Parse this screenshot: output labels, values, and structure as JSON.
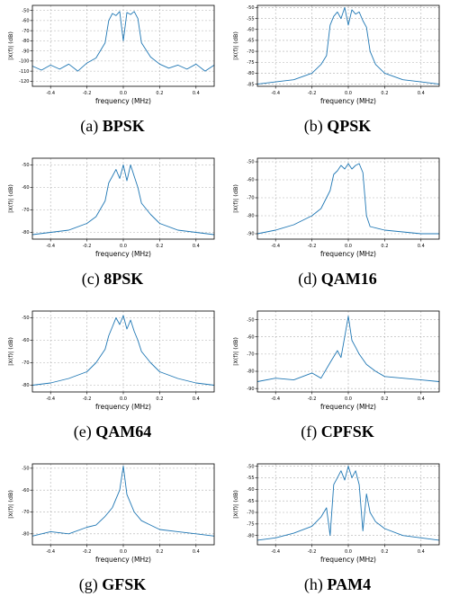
{
  "style": {
    "line_color": "#1f77b4",
    "grid_color": "#b0b0b0"
  },
  "chart_data": [
    {
      "type": "line",
      "caption_prefix": "(a) ",
      "caption_name": "BPSK",
      "xlabel": "frequency (MHz)",
      "ylabel": "|X(f)| (dB)",
      "xlim": [
        -0.5,
        0.5
      ],
      "ylim": [
        -125,
        -45
      ],
      "xticks": [
        "-0.4",
        "-0.2",
        "0.0",
        "0.2",
        "0.4"
      ],
      "yticks": [
        "-50",
        "-60",
        "-70",
        "-80",
        "-90",
        "-100",
        "-110",
        "-120"
      ],
      "x": [
        -0.5,
        -0.45,
        -0.4,
        -0.35,
        -0.3,
        -0.25,
        -0.2,
        -0.15,
        -0.1,
        -0.08,
        -0.06,
        -0.04,
        -0.02,
        0.0,
        0.02,
        0.04,
        0.06,
        0.08,
        0.1,
        0.15,
        0.2,
        0.25,
        0.3,
        0.35,
        0.4,
        0.45,
        0.5
      ],
      "values": [
        -105,
        -109,
        -104,
        -108,
        -103,
        -110,
        -102,
        -97,
        -82,
        -60,
        -53,
        -55,
        -51,
        -80,
        -52,
        -54,
        -51,
        -58,
        -82,
        -96,
        -103,
        -107,
        -104,
        -108,
        -103,
        -110,
        -104
      ]
    },
    {
      "type": "line",
      "caption_prefix": "(b) ",
      "caption_name": "QPSK",
      "xlabel": "frequency (MHz)",
      "ylabel": "|X(f)| (dB)",
      "xlim": [
        -0.5,
        0.5
      ],
      "ylim": [
        -86,
        -49
      ],
      "xticks": [
        "-0.4",
        "-0.2",
        "0.0",
        "0.2",
        "0.4"
      ],
      "yticks": [
        "-50",
        "-55",
        "-60",
        "-65",
        "-70",
        "-75",
        "-80",
        "-85"
      ],
      "x": [
        -0.5,
        -0.4,
        -0.3,
        -0.2,
        -0.15,
        -0.12,
        -0.1,
        -0.08,
        -0.06,
        -0.04,
        -0.02,
        0.0,
        0.02,
        0.04,
        0.06,
        0.08,
        0.1,
        0.12,
        0.15,
        0.2,
        0.3,
        0.4,
        0.5
      ],
      "values": [
        -85,
        -84,
        -83,
        -80,
        -76,
        -72,
        -58,
        -54,
        -52,
        -55,
        -50,
        -58,
        -51,
        -53,
        -52,
        -56,
        -59,
        -70,
        -76,
        -80,
        -83,
        -84,
        -85
      ]
    },
    {
      "type": "line",
      "caption_prefix": "(c) ",
      "caption_name": "8PSK",
      "xlabel": "frequency (MHz)",
      "ylabel": "|X(f)| (dB)",
      "xlim": [
        -0.5,
        0.5
      ],
      "ylim": [
        -83,
        -47
      ],
      "xticks": [
        "-0.4",
        "-0.2",
        "0.0",
        "0.2",
        "0.4"
      ],
      "yticks": [
        "-50",
        "-60",
        "-70",
        "-80"
      ],
      "x": [
        -0.5,
        -0.4,
        -0.3,
        -0.2,
        -0.15,
        -0.1,
        -0.08,
        -0.06,
        -0.04,
        -0.02,
        0.0,
        0.02,
        0.04,
        0.06,
        0.08,
        0.1,
        0.15,
        0.2,
        0.3,
        0.4,
        0.5
      ],
      "values": [
        -81,
        -80,
        -79,
        -76,
        -73,
        -66,
        -58,
        -55,
        -52,
        -56,
        -50,
        -57,
        -50,
        -55,
        -60,
        -67,
        -72,
        -76,
        -79,
        -80,
        -81
      ]
    },
    {
      "type": "line",
      "caption_prefix": "(d) ",
      "caption_name": "QAM16",
      "xlabel": "frequency (MHz)",
      "ylabel": "|X(f)| (dB)",
      "xlim": [
        -0.5,
        0.5
      ],
      "ylim": [
        -93,
        -48
      ],
      "xticks": [
        "-0.4",
        "-0.2",
        "0.0",
        "0.2",
        "0.4"
      ],
      "yticks": [
        "-50",
        "-60",
        "-70",
        "-80",
        "-90"
      ],
      "x": [
        -0.5,
        -0.4,
        -0.3,
        -0.2,
        -0.15,
        -0.1,
        -0.08,
        -0.06,
        -0.04,
        -0.02,
        0.0,
        0.02,
        0.04,
        0.06,
        0.08,
        0.1,
        0.12,
        0.2,
        0.3,
        0.4,
        0.5
      ],
      "values": [
        -90,
        -88,
        -85,
        -80,
        -76,
        -66,
        -57,
        -55,
        -52,
        -54,
        -51,
        -54,
        -52,
        -51,
        -56,
        -80,
        -86,
        -88,
        -89,
        -90,
        -90
      ]
    },
    {
      "type": "line",
      "caption_prefix": "(e) ",
      "caption_name": "QAM64",
      "xlabel": "frequency (MHz)",
      "ylabel": "|X(f)| (dB)",
      "xlim": [
        -0.5,
        0.5
      ],
      "ylim": [
        -83,
        -47
      ],
      "xticks": [
        "-0.4",
        "-0.2",
        "0.0",
        "0.2",
        "0.4"
      ],
      "yticks": [
        "-50",
        "-60",
        "-70",
        "-80"
      ],
      "x": [
        -0.5,
        -0.4,
        -0.3,
        -0.2,
        -0.15,
        -0.1,
        -0.08,
        -0.06,
        -0.04,
        -0.02,
        0.0,
        0.02,
        0.04,
        0.06,
        0.08,
        0.1,
        0.15,
        0.2,
        0.3,
        0.4,
        0.5
      ],
      "values": [
        -80,
        -79,
        -77,
        -74,
        -70,
        -64,
        -58,
        -54,
        -50,
        -53,
        -49,
        -55,
        -51,
        -56,
        -60,
        -65,
        -70,
        -74,
        -77,
        -79,
        -80
      ]
    },
    {
      "type": "line",
      "caption_prefix": "(f) ",
      "caption_name": "CPFSK",
      "xlabel": "frequency (MHz)",
      "ylabel": "|X(f)| (dB)",
      "xlim": [
        -0.5,
        0.5
      ],
      "ylim": [
        -92,
        -45
      ],
      "xticks": [
        "-0.4",
        "-0.2",
        "0.0",
        "0.2",
        "0.4"
      ],
      "yticks": [
        "-50",
        "-60",
        "-70",
        "-80",
        "-90"
      ],
      "x": [
        -0.5,
        -0.4,
        -0.3,
        -0.2,
        -0.15,
        -0.1,
        -0.06,
        -0.04,
        -0.02,
        0.0,
        0.02,
        0.04,
        0.06,
        0.1,
        0.15,
        0.2,
        0.3,
        0.4,
        0.5
      ],
      "values": [
        -86,
        -84,
        -85,
        -81,
        -84,
        -75,
        -68,
        -72,
        -60,
        -48,
        -62,
        -66,
        -70,
        -76,
        -80,
        -83,
        -84,
        -85,
        -86
      ]
    },
    {
      "type": "line",
      "caption_prefix": "(g) ",
      "caption_name": "GFSK",
      "xlabel": "frequency (MHz)",
      "ylabel": "|X(f)| (dB)",
      "xlim": [
        -0.5,
        0.5
      ],
      "ylim": [
        -85,
        -48
      ],
      "xticks": [
        "-0.4",
        "-0.2",
        "0.0",
        "0.2",
        "0.4"
      ],
      "yticks": [
        "-50",
        "-60",
        "-70",
        "-80"
      ],
      "x": [
        -0.5,
        -0.4,
        -0.3,
        -0.2,
        -0.15,
        -0.1,
        -0.06,
        -0.04,
        -0.02,
        0.0,
        0.02,
        0.04,
        0.06,
        0.1,
        0.15,
        0.2,
        0.3,
        0.4,
        0.5
      ],
      "values": [
        -81,
        -79,
        -80,
        -77,
        -76,
        -72,
        -68,
        -64,
        -60,
        -49,
        -62,
        -66,
        -70,
        -74,
        -76,
        -78,
        -79,
        -80,
        -81
      ]
    },
    {
      "type": "line",
      "caption_prefix": "(h) ",
      "caption_name": "PAM4",
      "xlabel": "frequency (MHz)",
      "ylabel": "|X(f)| (dB)",
      "xlim": [
        -0.5,
        0.5
      ],
      "ylim": [
        -84,
        -49
      ],
      "xticks": [
        "-0.4",
        "-0.2",
        "0.0",
        "0.2",
        "0.4"
      ],
      "yticks": [
        "-50",
        "-55",
        "-60",
        "-65",
        "-70",
        "-75",
        "-80"
      ],
      "x": [
        -0.5,
        -0.4,
        -0.3,
        -0.2,
        -0.15,
        -0.12,
        -0.1,
        -0.08,
        -0.06,
        -0.04,
        -0.02,
        0.0,
        0.02,
        0.04,
        0.06,
        0.08,
        0.1,
        0.12,
        0.15,
        0.2,
        0.3,
        0.4,
        0.5
      ],
      "values": [
        -82,
        -81,
        -79,
        -76,
        -72,
        -68,
        -80,
        -58,
        -55,
        -52,
        -56,
        -50,
        -55,
        -52,
        -58,
        -78,
        -62,
        -70,
        -74,
        -77,
        -80,
        -81,
        -82
      ]
    }
  ]
}
